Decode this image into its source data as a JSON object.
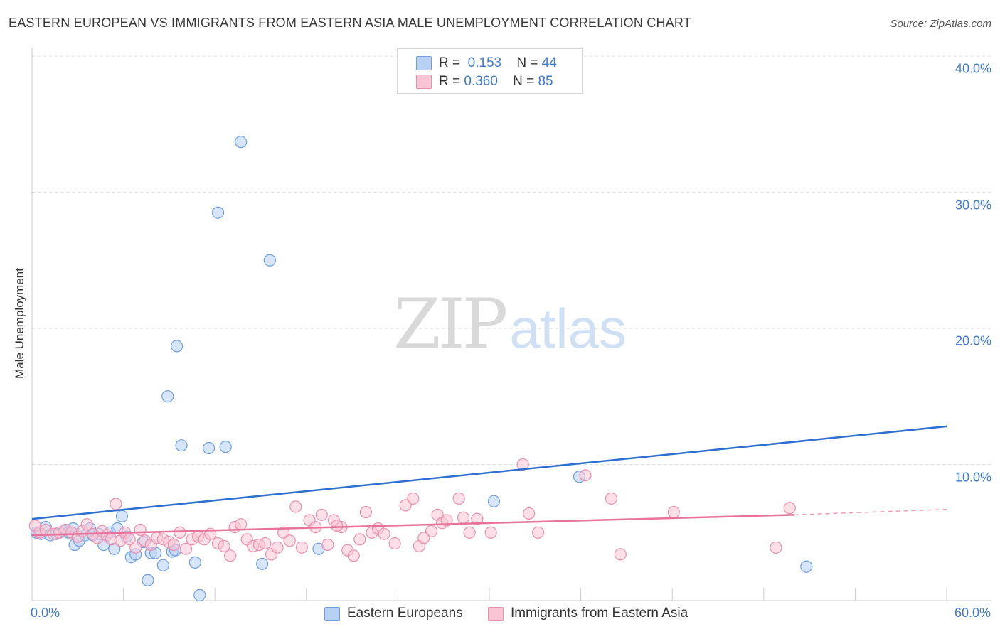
{
  "header": {
    "title": "EASTERN EUROPEAN VS IMMIGRANTS FROM EASTERN ASIA MALE UNEMPLOYMENT CORRELATION CHART",
    "source": "Source: ZipAtlas.com"
  },
  "watermark": {
    "zip": "ZIP",
    "atlas": "atlas"
  },
  "legend_top": [
    {
      "r_label": "R =",
      "r_value": "0.153",
      "n_label": "N =",
      "n_value": "44"
    },
    {
      "r_label": "R =",
      "r_value": "0.360",
      "n_label": "N =",
      "n_value": "85"
    }
  ],
  "colors": {
    "blue_fill": "#b7d0f4",
    "blue_stroke": "#6f9fe0",
    "blue_line": "#2d6fd0",
    "pink_fill": "#f9c4d4",
    "pink_stroke": "#ec8fae",
    "pink_line": "#e7739b",
    "tick_label": "#3f7bd0",
    "grid": "#dddddd"
  },
  "chart_data": {
    "type": "scatter",
    "title": "EASTERN EUROPEAN VS IMMIGRANTS FROM EASTERN ASIA MALE UNEMPLOYMENT CORRELATION CHART",
    "xlabel": "",
    "ylabel": "Male Unemployment",
    "xlim": [
      0,
      60
    ],
    "ylim": [
      0,
      40
    ],
    "y_ticks": [
      {
        "value": 10,
        "label": "10.0%"
      },
      {
        "value": 20,
        "label": "20.0%"
      },
      {
        "value": 30,
        "label": "30.0%"
      },
      {
        "value": 40,
        "label": "40.0%"
      }
    ],
    "x_ticks": [
      {
        "value": 0,
        "label": "0.0%"
      },
      {
        "value": 60,
        "label": "60.0%"
      }
    ],
    "x_minor_ticks": [
      6,
      12,
      18,
      24,
      30,
      36,
      42,
      48,
      54,
      60
    ],
    "grid": true,
    "legend_position": "top-center",
    "series": [
      {
        "name": "Eastern Europeans",
        "color": "blue",
        "r": 0.153,
        "n": 44,
        "trend": {
          "x": [
            0,
            60
          ],
          "y": [
            6.0,
            12.8
          ]
        },
        "points": [
          [
            0.3,
            5.0
          ],
          [
            0.6,
            4.9
          ],
          [
            0.9,
            5.4
          ],
          [
            1.2,
            4.8
          ],
          [
            1.6,
            4.9
          ],
          [
            2.1,
            5.1
          ],
          [
            2.4,
            5.0
          ],
          [
            2.7,
            5.3
          ],
          [
            2.8,
            4.1
          ],
          [
            3.1,
            4.4
          ],
          [
            3.5,
            4.8
          ],
          [
            3.8,
            5.3
          ],
          [
            4.0,
            4.8
          ],
          [
            4.4,
            4.9
          ],
          [
            4.7,
            4.1
          ],
          [
            5.1,
            5.0
          ],
          [
            5.4,
            3.8
          ],
          [
            5.6,
            5.3
          ],
          [
            5.9,
            6.2
          ],
          [
            6.2,
            4.7
          ],
          [
            6.5,
            3.2
          ],
          [
            6.8,
            3.4
          ],
          [
            7.3,
            4.3
          ],
          [
            7.6,
            1.5
          ],
          [
            7.8,
            3.5
          ],
          [
            8.1,
            3.5
          ],
          [
            8.6,
            2.6
          ],
          [
            9.2,
            3.6
          ],
          [
            9.4,
            3.7
          ],
          [
            9.5,
            18.7
          ],
          [
            8.9,
            15.0
          ],
          [
            9.8,
            11.4
          ],
          [
            10.7,
            2.8
          ],
          [
            11.0,
            0.4
          ],
          [
            11.6,
            11.2
          ],
          [
            12.2,
            28.5
          ],
          [
            12.7,
            11.3
          ],
          [
            13.7,
            33.7
          ],
          [
            15.1,
            2.7
          ],
          [
            15.6,
            25.0
          ],
          [
            18.8,
            3.8
          ],
          [
            30.3,
            7.3
          ],
          [
            35.9,
            9.1
          ],
          [
            50.8,
            2.5
          ]
        ]
      },
      {
        "name": "Immigrants from Eastern Asia",
        "color": "pink",
        "r": 0.36,
        "n": 85,
        "trend": {
          "x": [
            0,
            50
          ],
          "y": [
            4.8,
            6.3
          ]
        },
        "trend_dashed": {
          "x": [
            50,
            60
          ],
          "y": [
            6.3,
            6.7
          ]
        },
        "points": [
          [
            0.2,
            5.5
          ],
          [
            0.5,
            5.0
          ],
          [
            0.9,
            5.2
          ],
          [
            1.4,
            4.9
          ],
          [
            1.8,
            5.0
          ],
          [
            2.2,
            5.2
          ],
          [
            2.6,
            5.0
          ],
          [
            3.0,
            4.7
          ],
          [
            3.3,
            5.1
          ],
          [
            3.6,
            5.6
          ],
          [
            4.0,
            4.9
          ],
          [
            4.3,
            4.6
          ],
          [
            4.6,
            5.1
          ],
          [
            4.9,
            4.8
          ],
          [
            5.2,
            4.5
          ],
          [
            5.5,
            7.1
          ],
          [
            5.8,
            4.4
          ],
          [
            6.1,
            5.0
          ],
          [
            6.4,
            4.5
          ],
          [
            6.8,
            3.9
          ],
          [
            7.1,
            5.2
          ],
          [
            7.4,
            4.4
          ],
          [
            7.8,
            4.1
          ],
          [
            8.2,
            4.6
          ],
          [
            8.6,
            4.5
          ],
          [
            9.0,
            4.3
          ],
          [
            9.3,
            4.1
          ],
          [
            9.7,
            5.0
          ],
          [
            10.1,
            3.8
          ],
          [
            10.5,
            4.5
          ],
          [
            10.9,
            4.7
          ],
          [
            11.3,
            4.5
          ],
          [
            11.7,
            4.9
          ],
          [
            12.2,
            4.2
          ],
          [
            12.6,
            4.0
          ],
          [
            13.0,
            3.3
          ],
          [
            13.3,
            5.4
          ],
          [
            13.7,
            5.6
          ],
          [
            14.1,
            4.5
          ],
          [
            14.5,
            4.0
          ],
          [
            14.9,
            4.1
          ],
          [
            15.3,
            4.2
          ],
          [
            15.7,
            3.4
          ],
          [
            16.1,
            3.9
          ],
          [
            16.5,
            5.0
          ],
          [
            16.9,
            4.4
          ],
          [
            17.3,
            6.9
          ],
          [
            17.7,
            3.9
          ],
          [
            18.2,
            5.9
          ],
          [
            18.6,
            5.4
          ],
          [
            19.0,
            6.3
          ],
          [
            19.4,
            4.1
          ],
          [
            19.8,
            5.9
          ],
          [
            20.3,
            5.4
          ],
          [
            20.7,
            3.7
          ],
          [
            21.1,
            3.3
          ],
          [
            21.5,
            4.5
          ],
          [
            21.9,
            6.5
          ],
          [
            22.3,
            5.0
          ],
          [
            22.7,
            5.3
          ],
          [
            23.1,
            4.9
          ],
          [
            23.8,
            4.2
          ],
          [
            24.5,
            7.0
          ],
          [
            25.0,
            7.5
          ],
          [
            25.4,
            4.0
          ],
          [
            26.2,
            5.1
          ],
          [
            26.6,
            6.3
          ],
          [
            26.9,
            5.7
          ],
          [
            27.2,
            5.9
          ],
          [
            28.0,
            7.5
          ],
          [
            28.3,
            6.1
          ],
          [
            28.7,
            5.0
          ],
          [
            29.2,
            6.0
          ],
          [
            30.1,
            5.0
          ],
          [
            32.2,
            10.0
          ],
          [
            32.6,
            6.4
          ],
          [
            33.2,
            5.0
          ],
          [
            36.3,
            9.2
          ],
          [
            38.0,
            7.5
          ],
          [
            38.6,
            3.4
          ],
          [
            42.1,
            6.5
          ],
          [
            48.8,
            3.9
          ],
          [
            49.7,
            6.8
          ],
          [
            25.7,
            4.6
          ],
          [
            20.0,
            5.5
          ]
        ]
      }
    ]
  },
  "legend_bottom": [
    {
      "label": "Eastern Europeans",
      "color": "blue"
    },
    {
      "label": "Immigrants from Eastern Asia",
      "color": "pink"
    }
  ]
}
